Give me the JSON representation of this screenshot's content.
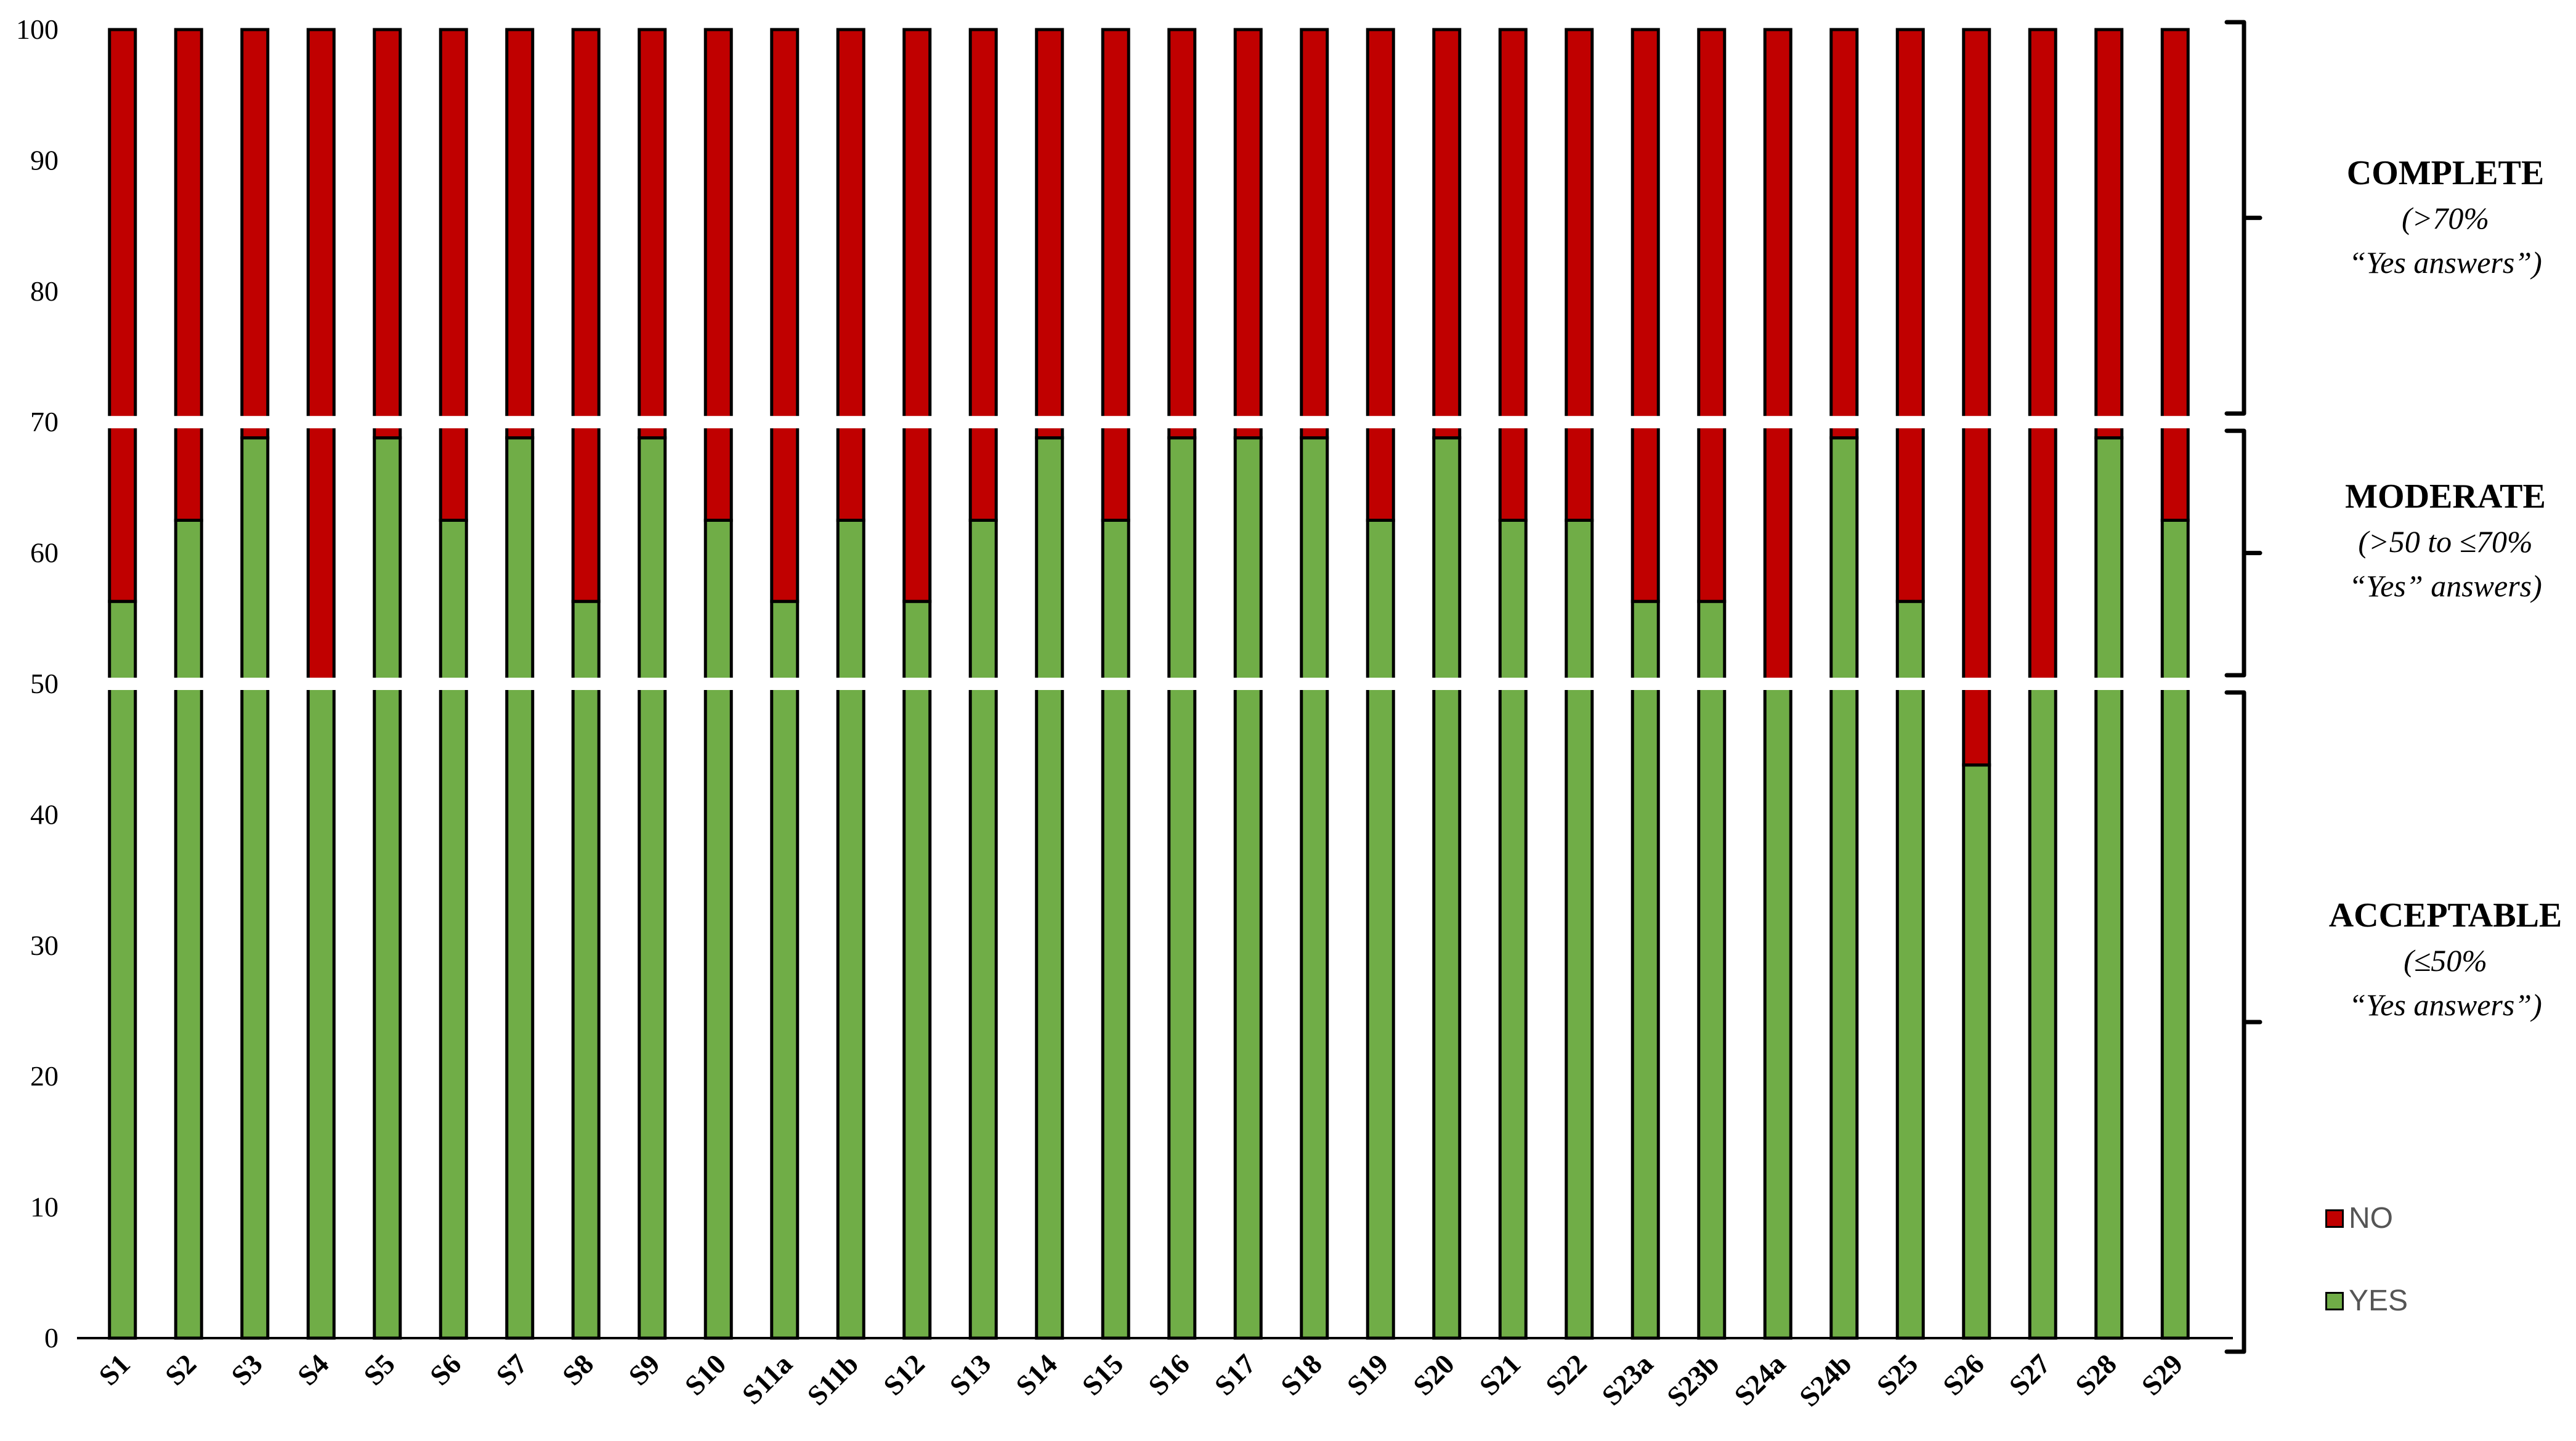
{
  "chart_data": {
    "type": "bar",
    "stacked": true,
    "categories": [
      "S1",
      "S2",
      "S3",
      "S4",
      "S5",
      "S6",
      "S7",
      "S8",
      "S9",
      "S10",
      "S11a",
      "S11b",
      "S12",
      "S13",
      "S14",
      "S15",
      "S16",
      "S17",
      "S18",
      "S19",
      "S20",
      "S21",
      "S22",
      "S23a",
      "S23b",
      "S24a",
      "S24b",
      "S25",
      "S26",
      "S27",
      "S28",
      "S29"
    ],
    "series": [
      {
        "name": "YES",
        "color": "#70ad47",
        "values": [
          56.3,
          62.5,
          68.8,
          50,
          68.8,
          62.5,
          68.8,
          56.3,
          68.8,
          62.5,
          56.3,
          62.5,
          56.3,
          62.5,
          68.8,
          62.5,
          68.8,
          68.8,
          68.8,
          62.5,
          68.8,
          62.5,
          62.5,
          56.3,
          56.3,
          50,
          68.8,
          56.3,
          43.8,
          50,
          68.8,
          62.5
        ]
      },
      {
        "name": "NO",
        "color": "#c00000",
        "values": [
          43.7,
          37.5,
          31.2,
          50,
          31.2,
          37.5,
          31.2,
          43.7,
          31.2,
          37.5,
          43.7,
          37.5,
          43.7,
          37.5,
          31.2,
          37.5,
          31.2,
          31.2,
          31.2,
          37.5,
          31.2,
          37.5,
          37.5,
          43.7,
          43.7,
          50,
          31.2,
          43.7,
          56.2,
          50,
          31.2,
          37.5
        ]
      }
    ],
    "ylim": [
      0,
      100
    ],
    "yticks": [
      0,
      10,
      20,
      30,
      40,
      50,
      60,
      70,
      80,
      90,
      100
    ],
    "xlabel": "",
    "ylabel": "",
    "grid": false,
    "legend": {
      "placement": "right",
      "entries": [
        "NO",
        "YES"
      ]
    },
    "band_breaks": [
      50,
      70
    ],
    "regions": [
      {
        "title": "COMPLETE",
        "sub1": "(>70%",
        "sub2": "“Yes answers”)",
        "range": [
          70,
          100
        ]
      },
      {
        "title": "MODERATE",
        "sub1": "(>50 to ≤70%",
        "sub2": "“Yes” answers)",
        "range": [
          50,
          70
        ]
      },
      {
        "title": "ACCEPTABLE",
        "sub1": "(≤50%",
        "sub2": "“Yes answers”)",
        "range": [
          0,
          50
        ]
      }
    ]
  },
  "legend_labels": {
    "no": "NO",
    "yes": "YES"
  }
}
